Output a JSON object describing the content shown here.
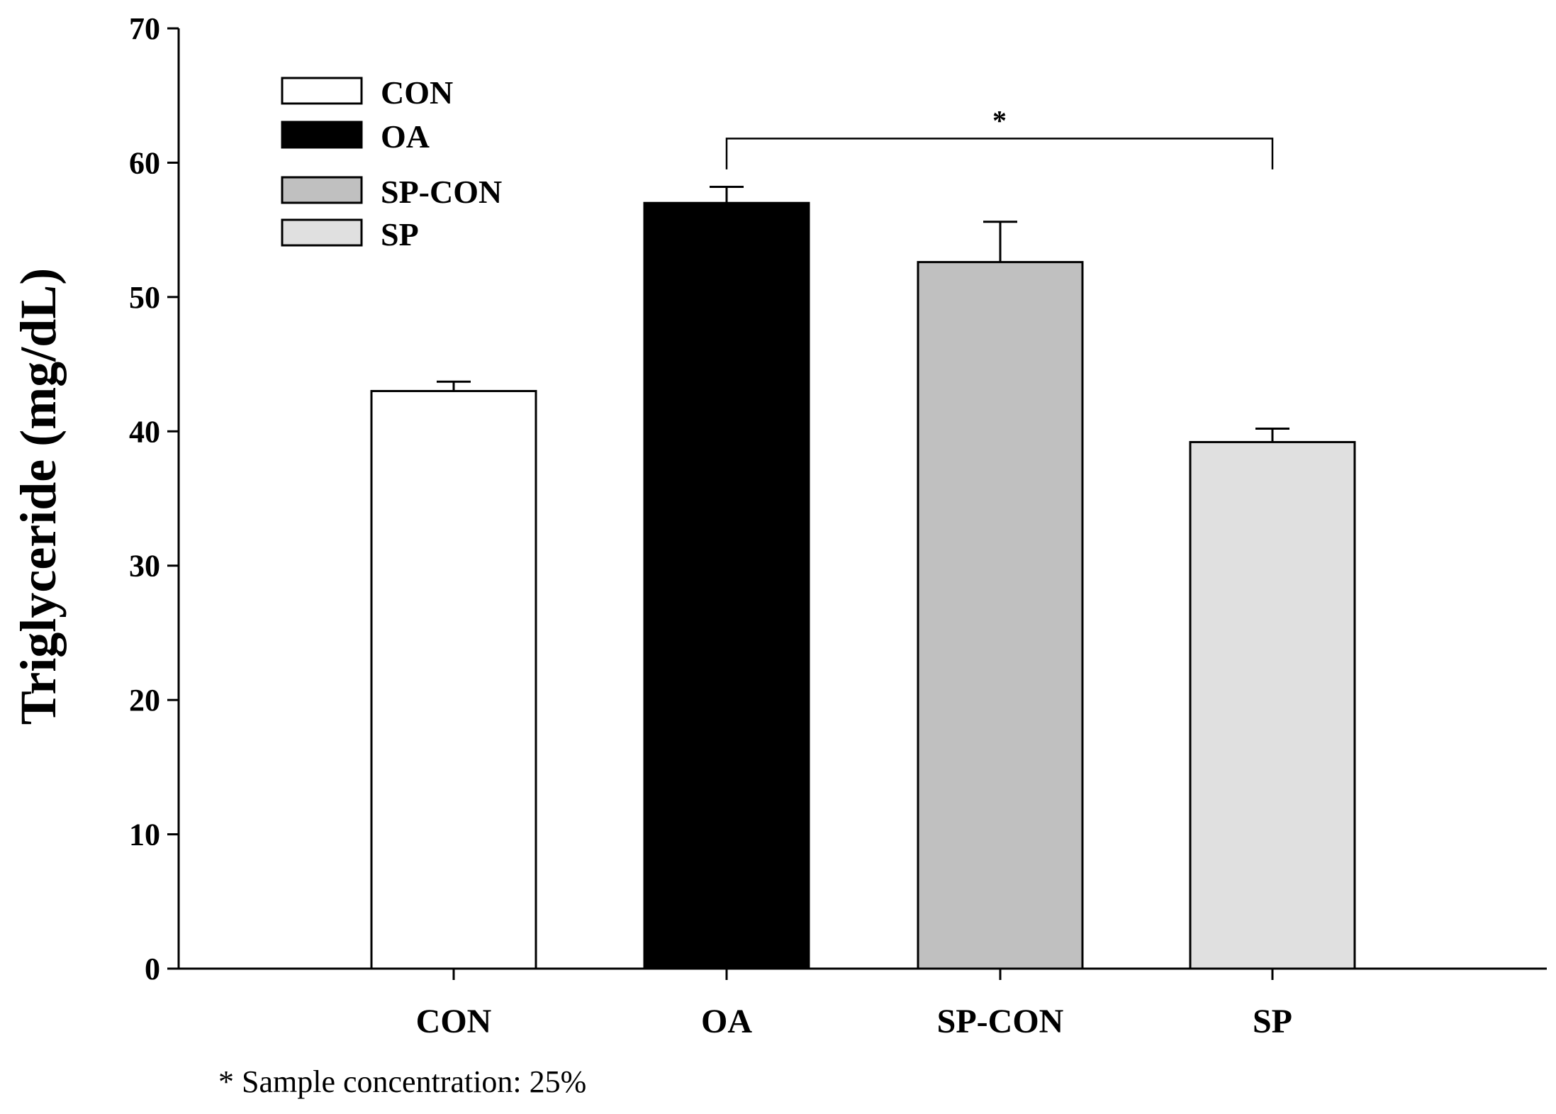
{
  "chart_data": {
    "type": "bar",
    "title": "",
    "xlabel": "",
    "ylabel": "Triglyceride (mg/dL)",
    "ylim": [
      0,
      70
    ],
    "yticks": [
      0,
      10,
      20,
      30,
      40,
      50,
      60,
      70
    ],
    "categories": [
      "CON",
      "OA",
      "SP-CON",
      "SP"
    ],
    "values": [
      43.0,
      57.0,
      52.6,
      39.2
    ],
    "errors": [
      0.7,
      1.2,
      3.0,
      1.0
    ],
    "colors": [
      "#ffffff",
      "#000000",
      "#c0c0c0",
      "#e0e0e0"
    ],
    "legend": {
      "placement": "top-left",
      "entries": [
        {
          "label": "CON",
          "color": "#ffffff"
        },
        {
          "label": "OA",
          "color": "#000000"
        },
        {
          "label": "SP-CON",
          "color": "#c0c0c0"
        },
        {
          "label": "SP",
          "color": "#e0e0e0"
        }
      ]
    },
    "significance": {
      "from": "OA",
      "to": "SP",
      "symbol": "*",
      "level": 61.8
    },
    "footnote": "* Sample concentration: 25%"
  }
}
